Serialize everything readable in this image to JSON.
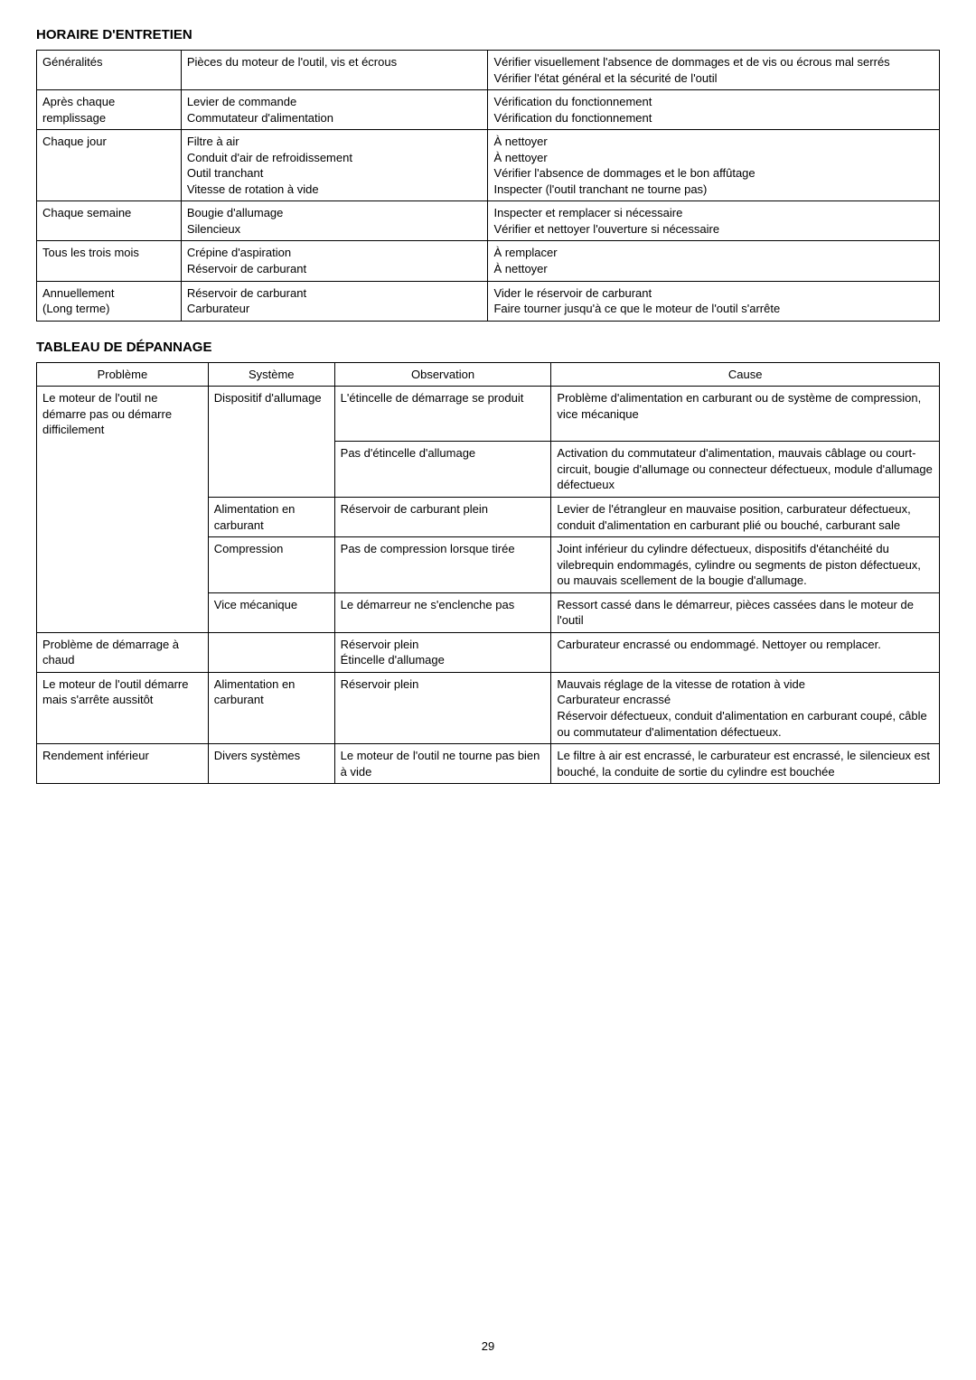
{
  "section1": {
    "heading": "HORAIRE D'ENTRETIEN",
    "rows": [
      {
        "c1": "Généralités",
        "c2": "Pièces du moteur de l'outil, vis et écrous",
        "c3": "Vérifier visuellement l'absence de dommages et de vis ou écrous mal serrés\nVérifier l'état général et la sécurité de l'outil"
      },
      {
        "c1": "Après chaque remplissage",
        "c2": "Levier de commande\nCommutateur d'alimentation",
        "c3": "Vérification du fonctionnement\nVérification du fonctionnement"
      },
      {
        "c1": "Chaque jour",
        "c2": "Filtre à air\nConduit d'air de refroidissement\nOutil tranchant\nVitesse de rotation à vide",
        "c3": "À nettoyer\nÀ nettoyer\nVérifier l'absence de dommages et le bon affûtage\nInspecter (l'outil tranchant ne tourne pas)"
      },
      {
        "c1": "Chaque semaine",
        "c2": "Bougie d'allumage\nSilencieux",
        "c3": "Inspecter et remplacer si nécessaire\nVérifier et nettoyer l'ouverture si nécessaire"
      },
      {
        "c1": "Tous les trois mois",
        "c2": "Crépine d'aspiration\nRéservoir de carburant",
        "c3": "À remplacer\nÀ nettoyer"
      },
      {
        "c1": "Annuellement\n(Long terme)",
        "c2": "Réservoir de carburant\nCarburateur",
        "c3": "Vider le réservoir de carburant\nFaire tourner jusqu'à ce que le moteur de l'outil s'arrête"
      }
    ]
  },
  "section2": {
    "heading": "TABLEAU DE DÉPANNAGE",
    "headers": [
      "Problème",
      "Système",
      "Observation",
      "Cause"
    ],
    "rows": [
      {
        "c1": "Le moteur de l'outil ne démarre pas ou démarre difficilement",
        "c2": "Dispositif d'allumage",
        "c3": "L'étincelle de démarrage se produit",
        "c4": "Problème d'alimentation en carburant ou de système de compression, vice mécanique",
        "c1cls": "no-bottom",
        "c2cls": "no-bottom"
      },
      {
        "c1": "",
        "c2": "",
        "c3": "Pas d'étincelle d'allumage",
        "c4": "Activation du commutateur d'alimentation, mauvais câblage ou court-circuit, bougie d'allumage ou connecteur défectueux, module d'allumage défectueux",
        "c1cls": "no-top no-bottom",
        "c2cls": "no-top"
      },
      {
        "c1": "",
        "c2": "Alimentation en carburant",
        "c3": "Réservoir de carburant plein",
        "c4": "Levier de l'étrangleur en mauvaise position, carburateur défectueux, conduit d'alimentation en carburant plié ou bouché, carburant sale",
        "c1cls": "no-top no-bottom"
      },
      {
        "c1": "",
        "c2": "Compression",
        "c3": "Pas de compression lorsque tirée",
        "c4": "Joint inférieur du cylindre défectueux, dispositifs d'étanchéité du vilebrequin endommagés, cylindre ou segments de piston défectueux, ou mauvais scellement de la bougie d'allumage.",
        "c1cls": "no-top no-bottom"
      },
      {
        "c1": "",
        "c2": "Vice mécanique",
        "c3": "Le démarreur ne s'enclenche pas",
        "c4": "Ressort cassé dans le démarreur, pièces cassées dans le moteur de l'outil",
        "c1cls": "no-top"
      },
      {
        "c1": "Problème de démarrage à chaud",
        "c2": "",
        "c3": "Réservoir plein\nÉtincelle d'allumage",
        "c4": "Carburateur encrassé ou endommagé.  Nettoyer ou remplacer."
      },
      {
        "c1": "Le moteur de l'outil démarre mais s'arrête aussitôt",
        "c2": "Alimentation en carburant",
        "c3": "Réservoir plein",
        "c4": "Mauvais réglage de la vitesse de rotation à vide\nCarburateur encrassé\nRéservoir défectueux, conduit d'alimentation en carburant coupé, câble ou commutateur d'alimentation défectueux."
      },
      {
        "c1": "Rendement inférieur",
        "c2": "Divers systèmes",
        "c3": "Le moteur de l'outil ne tourne pas bien à vide",
        "c4": "Le filtre à air est encrassé, le carburateur est encrassé, le silencieux est bouché, la conduite de sortie du cylindre est bouchée"
      }
    ]
  },
  "pageNumber": "29"
}
